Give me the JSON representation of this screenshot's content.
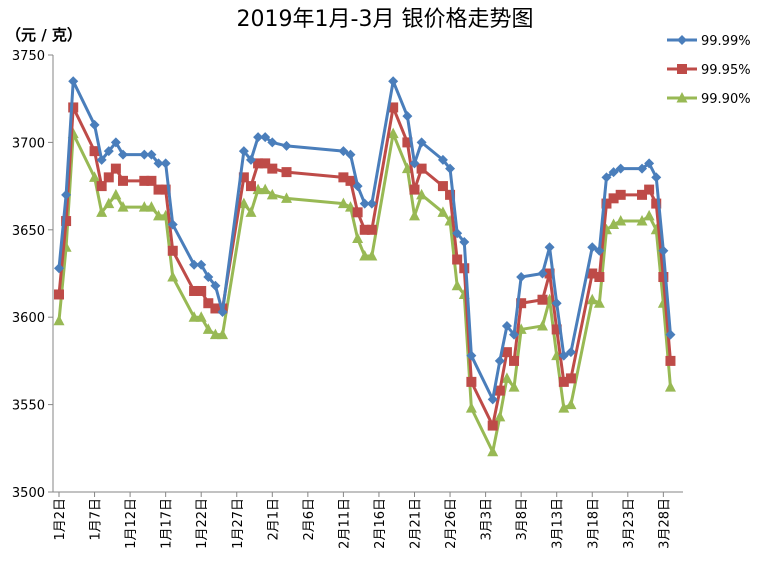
{
  "chart_data": {
    "type": "line",
    "title": "2019年1月-3月 银价格走势图",
    "unit_label": "（元 / 克）",
    "ylim": [
      3500,
      3750
    ],
    "yticks": [
      3500,
      3550,
      3600,
      3650,
      3700,
      3750
    ],
    "x_start": "2019-01-02",
    "x_tick_labels": [
      "1月2日",
      "1月7日",
      "1月12日",
      "1月17日",
      "1月22日",
      "1月27日",
      "2月1日",
      "2月6日",
      "2月11日",
      "2月16日",
      "2月21日",
      "2月26日",
      "3月3日",
      "3月8日",
      "3月13日",
      "3月18日",
      "3月23日",
      "3月28日"
    ],
    "x_tick_dates": [
      "2019-01-02",
      "2019-01-07",
      "2019-01-12",
      "2019-01-17",
      "2019-01-22",
      "2019-01-27",
      "2019-02-01",
      "2019-02-06",
      "2019-02-11",
      "2019-02-16",
      "2019-02-21",
      "2019-02-26",
      "2019-03-03",
      "2019-03-08",
      "2019-03-13",
      "2019-03-18",
      "2019-03-23",
      "2019-03-28"
    ],
    "grid": false,
    "legend_position": "top-right",
    "dates": [
      "2019-01-02",
      "2019-01-03",
      "2019-01-04",
      "2019-01-07",
      "2019-01-08",
      "2019-01-09",
      "2019-01-10",
      "2019-01-11",
      "2019-01-14",
      "2019-01-15",
      "2019-01-16",
      "2019-01-17",
      "2019-01-18",
      "2019-01-21",
      "2019-01-22",
      "2019-01-23",
      "2019-01-24",
      "2019-01-25",
      "2019-01-28",
      "2019-01-29",
      "2019-01-30",
      "2019-01-31",
      "2019-02-01",
      "2019-02-03",
      "2019-02-11",
      "2019-02-12",
      "2019-02-13",
      "2019-02-14",
      "2019-02-15",
      "2019-02-18",
      "2019-02-20",
      "2019-02-21",
      "2019-02-22",
      "2019-02-25",
      "2019-02-26",
      "2019-02-27",
      "2019-02-28",
      "2019-03-01",
      "2019-03-04",
      "2019-03-05",
      "2019-03-06",
      "2019-03-07",
      "2019-03-08",
      "2019-03-11",
      "2019-03-12",
      "2019-03-13",
      "2019-03-14",
      "2019-03-15",
      "2019-03-18",
      "2019-03-19",
      "2019-03-20",
      "2019-03-21",
      "2019-03-22",
      "2019-03-25",
      "2019-03-26",
      "2019-03-27",
      "2019-03-28",
      "2019-03-29"
    ],
    "series": [
      {
        "name": "99.99%",
        "color": "#4a7ebb",
        "marker": "diamond",
        "values": [
          3628,
          3670,
          3735,
          3710,
          3690,
          3695,
          3700,
          3693,
          3693,
          3693,
          3688,
          3688,
          3653,
          3630,
          3630,
          3623,
          3618,
          3603,
          3695,
          3690,
          3703,
          3703,
          3700,
          3698,
          3695,
          3693,
          3675,
          3665,
          3665,
          3735,
          3715,
          3688,
          3700,
          3690,
          3685,
          3648,
          3643,
          3578,
          3553,
          3575,
          3595,
          3590,
          3623,
          3625,
          3640,
          3608,
          3578,
          3580,
          3640,
          3638,
          3680,
          3683,
          3685,
          3685,
          3688,
          3680,
          3638,
          3590
        ]
      },
      {
        "name": "99.95%",
        "color": "#be4b48",
        "marker": "square",
        "values": [
          3613,
          3655,
          3720,
          3695,
          3675,
          3680,
          3685,
          3678,
          3678,
          3678,
          3673,
          3673,
          3638,
          3615,
          3615,
          3608,
          3605,
          3605,
          3680,
          3675,
          3688,
          3688,
          3685,
          3683,
          3680,
          3678,
          3660,
          3650,
          3650,
          3720,
          3700,
          3673,
          3685,
          3675,
          3670,
          3633,
          3628,
          3563,
          3538,
          3558,
          3580,
          3575,
          3608,
          3610,
          3625,
          3593,
          3563,
          3565,
          3625,
          3623,
          3665,
          3668,
          3670,
          3670,
          3673,
          3665,
          3623,
          3575
        ]
      },
      {
        "name": "99.90%",
        "color": "#98b954",
        "marker": "triangle",
        "values": [
          3598,
          3640,
          3705,
          3680,
          3660,
          3665,
          3670,
          3663,
          3663,
          3663,
          3658,
          3658,
          3623,
          3600,
          3600,
          3593,
          3590,
          3590,
          3665,
          3660,
          3673,
          3673,
          3670,
          3668,
          3665,
          3663,
          3645,
          3635,
          3635,
          3705,
          3685,
          3658,
          3670,
          3660,
          3655,
          3618,
          3613,
          3548,
          3523,
          3543,
          3565,
          3560,
          3593,
          3595,
          3610,
          3578,
          3548,
          3550,
          3610,
          3608,
          3650,
          3653,
          3655,
          3655,
          3658,
          3650,
          3608,
          3560
        ]
      }
    ]
  }
}
